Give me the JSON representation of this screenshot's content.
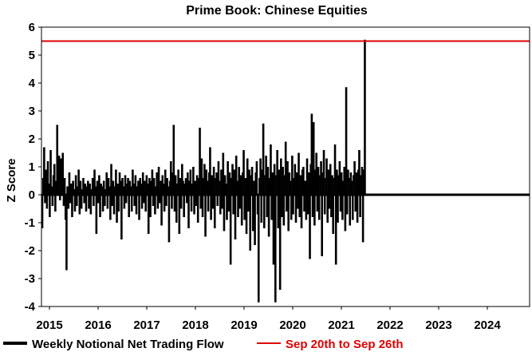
{
  "chart_data": {
    "type": "bar",
    "title": "Prime Book: Chinese Equities",
    "xlabel": "",
    "ylabel": "Z Score",
    "ylim": [
      -4,
      6
    ],
    "yticks": [
      "6",
      "5",
      "4",
      "3",
      "2",
      "1",
      "0",
      "-1",
      "-2",
      "-3",
      "-4"
    ],
    "xticks": [
      "2015",
      "2016",
      "2017",
      "2018",
      "2019",
      "2020",
      "2021",
      "2022",
      "2023",
      "2024"
    ],
    "grid": false,
    "legend_placement": "bottom",
    "series": [
      {
        "name": "Weekly Notional Net Trading Flow",
        "color": "#000000",
        "x_start": "2014-09-26",
        "frequency": "weekly",
        "values": [
          -0.6,
          0.5,
          -1.1,
          0.2,
          -0.9,
          1.8,
          -1.2,
          0.6,
          1.7,
          -0.3,
          0.9,
          -0.5,
          1.2,
          0.4,
          -0.8,
          1.6,
          0.3,
          -0.4,
          0.7,
          1.1,
          -0.6,
          0.5,
          2.5,
          0.8,
          1.4,
          -0.2,
          1.3,
          0.9,
          1.5,
          -0.4,
          0.6,
          -0.9,
          -2.7,
          0.3,
          -0.5,
          0.8,
          -0.3,
          0.4,
          -0.8,
          0.5,
          0.2,
          -0.6,
          0.7,
          -0.4,
          0.3,
          0.9,
          -0.7,
          0.5,
          -0.5,
          0.2,
          0.6,
          -0.3,
          0.4,
          -0.6,
          0.3,
          0.5,
          -0.5,
          0.4,
          -0.7,
          0.2,
          0.6,
          -0.4,
          0.9,
          0.3,
          -1.4,
          0.5,
          -0.3,
          0.7,
          -0.8,
          0.4,
          0.3,
          -0.6,
          0.5,
          -0.4,
          0.2,
          0.8,
          -0.5,
          0.6,
          0.3,
          -0.9,
          1.1,
          -0.4,
          0.5,
          -0.7,
          0.3,
          0.9,
          -1.0,
          0.4,
          -0.6,
          0.8,
          0.5,
          -1.6,
          0.6,
          0.3,
          -0.5,
          0.7,
          -0.3,
          0.4,
          0.6,
          -0.8,
          0.5,
          0.3,
          -0.6,
          0.9,
          0.4,
          -0.4,
          0.7,
          -0.7,
          0.3,
          0.5,
          -0.9,
          0.6,
          0.4,
          -0.5,
          0.8,
          -0.3,
          0.5,
          -0.6,
          0.7,
          0.4,
          -1.4,
          0.6,
          -0.8,
          0.5,
          0.9,
          -0.4,
          0.6,
          -0.7,
          0.3,
          0.8,
          -0.5,
          1.0,
          -0.3,
          0.5,
          -1.1,
          0.7,
          0.4,
          -0.6,
          0.9,
          -0.4,
          0.6,
          0.3,
          -1.7,
          0.5,
          1.2,
          -0.5,
          0.8,
          2.5,
          -0.6,
          0.7,
          -1.0,
          0.4,
          0.9,
          -1.4,
          0.6,
          -0.5,
          1.1,
          0.5,
          -0.8,
          0.4,
          0.6,
          -0.3,
          0.8,
          -1.2,
          0.5,
          0.9,
          -0.6,
          0.4,
          1.0,
          -0.7,
          0.5,
          -0.4,
          0.7,
          -1.0,
          0.6,
          2.4,
          -0.5,
          1.3,
          -0.8,
          0.6,
          1.1,
          -1.5,
          0.9,
          0.5,
          -0.6,
          0.8,
          1.7,
          -0.9,
          0.7,
          -0.5,
          1.0,
          -1.2,
          0.6,
          0.8,
          -0.4,
          1.2,
          0.5,
          -0.7,
          0.9,
          -0.5,
          1.5,
          -1.3,
          0.7,
          0.4,
          -0.9,
          1.2,
          -0.6,
          0.8,
          -2.5,
          0.6,
          1.1,
          -0.7,
          0.9,
          -1.6,
          1.4,
          0.5,
          -0.8,
          1.0,
          -0.5,
          0.7,
          -1.1,
          0.8,
          1.6,
          -0.9,
          0.6,
          -1.4,
          1.3,
          -0.6,
          0.9,
          -2.0,
          0.7,
          1.0,
          -1.3,
          0.5,
          -1.8,
          0.8,
          1.2,
          -0.7,
          -3.85,
          0.6,
          1.3,
          -1.0,
          0.9,
          2.55,
          -1.2,
          0.7,
          1.4,
          -0.8,
          1.0,
          -1.5,
          0.6,
          1.8,
          -0.9,
          0.8,
          -2.5,
          1.1,
          -3.85,
          0.7,
          1.6,
          -1.2,
          0.9,
          -3.4,
          1.3,
          -0.8,
          1.0,
          -1.1,
          0.7,
          1.9,
          -0.6,
          1.2,
          -1.3,
          0.8,
          0.5,
          -0.9,
          1.4,
          -0.7,
          0.6,
          1.1,
          -1.0,
          0.8,
          -0.5,
          1.5,
          -0.8,
          0.7,
          -1.2,
          0.9,
          1.0,
          -0.6,
          0.5,
          -0.9,
          1.3,
          -0.7,
          0.8,
          -2.3,
          1.1,
          2.9,
          -0.8,
          2.6,
          -1.1,
          0.9,
          1.5,
          -0.6,
          1.0,
          -0.9,
          0.7,
          1.2,
          -2.2,
          0.8,
          1.6,
          -0.7,
          0.6,
          1.3,
          -1.0,
          0.9,
          -0.5,
          1.1,
          -0.8,
          0.7,
          -1.4,
          0.6,
          1.8,
          -2.5,
          0.9,
          -1.0,
          0.7,
          1.2,
          -0.6,
          0.8,
          -0.9,
          0.5,
          1.0,
          -1.3,
          3.85,
          -0.7,
          0.9,
          0.6,
          -1.1,
          0.8,
          0.5,
          -0.9,
          0.7,
          1.2,
          -0.6,
          0.8,
          -1.0,
          0.9,
          1.6,
          -0.8,
          0.7,
          1.0,
          -1.7,
          0.9,
          5.55
        ]
      },
      {
        "name": "Sep 20th to Sep 26th",
        "color": "#e00000",
        "type": "hline",
        "value": 5.5
      }
    ]
  }
}
